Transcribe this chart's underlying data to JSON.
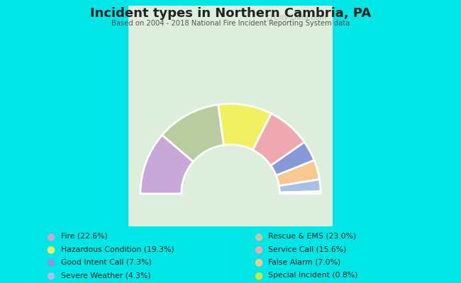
{
  "title": "Incident types in Northern Cambria, PA",
  "subtitle": "Based on 2004 - 2018 National Fire Incident Reporting System data",
  "outer_bg": "#00e5e5",
  "chart_bg_top": "#e8f5e0",
  "chart_bg_bottom": "#d0ead8",
  "watermark": "City-Data.com",
  "arc_order": [
    {
      "label": "Fire",
      "pct": 22.6,
      "color": "#c8a8d8"
    },
    {
      "label": "Rescue & EMS",
      "pct": 23.0,
      "color": "#b8cca0"
    },
    {
      "label": "Hazardous Condition",
      "pct": 19.3,
      "color": "#f0f060"
    },
    {
      "label": "Service Call",
      "pct": 15.6,
      "color": "#f0a8b0"
    },
    {
      "label": "Good Intent Call",
      "pct": 7.3,
      "color": "#8898d8"
    },
    {
      "label": "False Alarm",
      "pct": 7.0,
      "color": "#f8c890"
    },
    {
      "label": "Severe Weather",
      "pct": 4.3,
      "color": "#a8c0e8"
    },
    {
      "label": "Special Incident",
      "pct": 0.8,
      "color": "#c8e840"
    }
  ],
  "legend_order": [
    {
      "label": "Fire (22.6%)",
      "color": "#c8a8d8"
    },
    {
      "label": "Hazardous Condition (19.3%)",
      "color": "#f0f060"
    },
    {
      "label": "Good Intent Call (7.3%)",
      "color": "#8898d8"
    },
    {
      "label": "Severe Weather (4.3%)",
      "color": "#a8c0e8"
    },
    {
      "label": "Rescue & EMS (23.0%)",
      "color": "#b8cca0"
    },
    {
      "label": "Service Call (15.6%)",
      "color": "#f0a8b0"
    },
    {
      "label": "False Alarm (7.0%)",
      "color": "#f8c890"
    },
    {
      "label": "Special Incident (0.8%)",
      "color": "#c8e840"
    }
  ]
}
